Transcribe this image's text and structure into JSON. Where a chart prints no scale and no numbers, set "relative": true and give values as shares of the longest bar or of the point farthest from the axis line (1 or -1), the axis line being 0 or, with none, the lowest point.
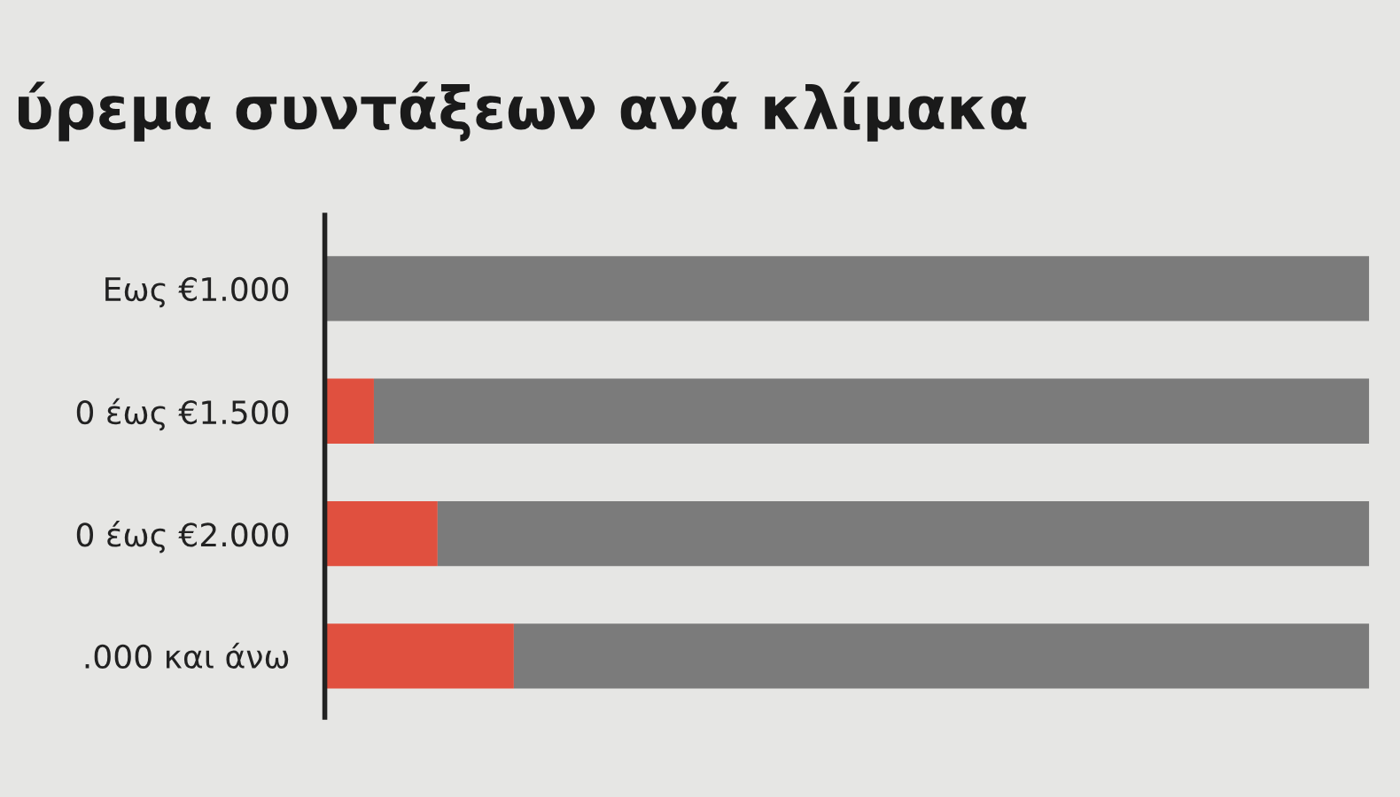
{
  "chart_data": {
    "type": "bar",
    "orientation": "horizontal",
    "stacked": true,
    "relative": true,
    "title": "ύρεμα συντάξεων ανά κλίμακα",
    "categories": [
      "Εως €1.000",
      "0 έως €1.500",
      "0 έως €2.000",
      ".000 και άνω"
    ],
    "series": [
      {
        "color": "#e0503f",
        "values": [
          0,
          0.047,
          0.108,
          0.181
        ]
      },
      {
        "color": "#7b7b7b",
        "values": [
          1,
          0.953,
          0.892,
          0.819
        ]
      }
    ],
    "grid": false,
    "legend": false
  }
}
